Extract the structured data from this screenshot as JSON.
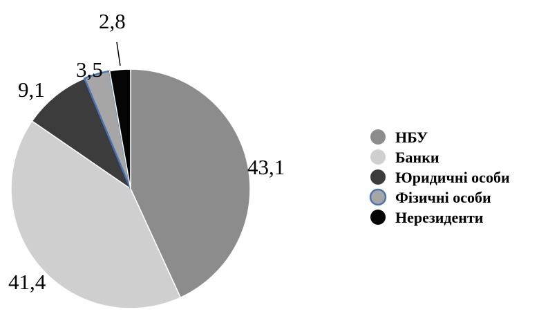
{
  "chart_data": {
    "type": "pie",
    "start_angle_deg": 0,
    "direction": "clockwise",
    "legend_position": "right",
    "slices": [
      {
        "label": "НБУ",
        "value": 43.1,
        "value_label": "43,1",
        "color": "#8c8c8c",
        "outline": "#ffffff"
      },
      {
        "label": "Банки",
        "value": 41.4,
        "value_label": "41,4",
        "color": "#cfcfcf",
        "outline": "#ffffff"
      },
      {
        "label": "Юридичні особи",
        "value": 9.1,
        "value_label": "9,1",
        "color": "#3c3c3c",
        "outline": "#ffffff"
      },
      {
        "label": "Фізичні особи",
        "value": 3.5,
        "value_label": "3,5",
        "color": "#a6a6a6",
        "outline": "#4a73b5"
      },
      {
        "label": "Нерезиденти",
        "value": 2.8,
        "value_label": "2,8",
        "color": "#050505",
        "outline": "#ffffff"
      }
    ]
  }
}
